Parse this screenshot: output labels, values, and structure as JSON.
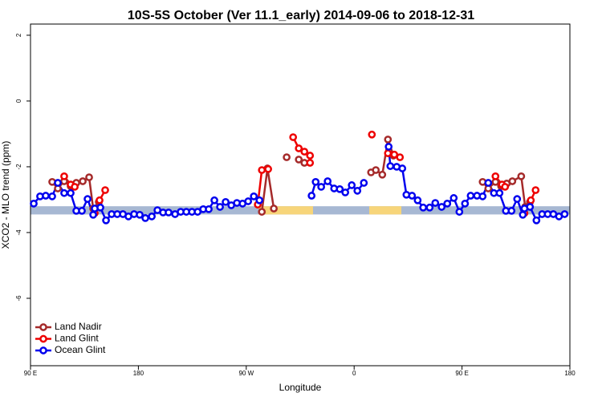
{
  "chart_data": {
    "type": "line",
    "title": "10S-5S October (Ver 11.1_early)   2014-09-06 to 2018-12-31",
    "x_label": "Longitude",
    "y_label": "XCO2 - MLO trend (ppm)",
    "xlim": [
      90,
      540
    ],
    "ylim": [
      -8.05,
      2.34
    ],
    "xticks": [
      {
        "value": 90,
        "label": "90 E"
      },
      180,
      {
        "value": 270,
        "label": "90 W"
      },
      {
        "value": 360,
        "label": "0"
      },
      {
        "value": 450,
        "label": "90 E"
      },
      {
        "value": 540,
        "label": "180"
      }
    ],
    "yticks": [
      -6,
      -4,
      -2,
      0,
      2
    ],
    "legend": "bottom-left",
    "band": {
      "ylim": [
        -3.45,
        -3.2
      ],
      "color": "#a7b8d3",
      "land_color": "#f7d57a",
      "land_spans": [
        [
          280.2,
          325.7
        ],
        [
          372.6,
          399.4
        ]
      ]
    },
    "series": [
      {
        "name": "Land Nadir",
        "color": "#a52a2a",
        "x": [
          108.1,
          112.8,
          118.1,
          123.5,
          128.2,
          133.6,
          138.9,
          142.3,
          147.0,
          null,
          283.0,
          287.7,
          293.0,
          null,
          303.7,
          null,
          313.8,
          318.5,
          null,
          374.1,
          378.1,
          383.5,
          388.2,
          392.8,
          null,
          467.2,
          471.9,
          477.9,
          482.6,
          487.3,
          492.0,
          499.4,
          502.7,
          506.7
        ],
        "values": [
          -2.46,
          -2.66,
          -2.44,
          -2.59,
          -2.49,
          -2.44,
          -2.32,
          -3.27,
          -3.07,
          null,
          -3.37,
          -2.05,
          -3.27,
          null,
          -1.71,
          null,
          -1.78,
          -1.88,
          null,
          -2.17,
          -2.1,
          -2.24,
          -1.17,
          -1.66,
          null,
          -2.46,
          -2.66,
          -2.46,
          -2.59,
          -2.51,
          -2.44,
          -2.29,
          -3.22,
          -3.07
        ]
      },
      {
        "name": "Land Glint",
        "color": "#ee0000",
        "x": [
          118.1,
          123.5,
          126.9,
          null,
          143.6,
          147.6,
          152.3,
          null,
          279.6,
          283.0,
          288.3,
          null,
          309.1,
          313.8,
          318.5,
          323.2,
          323.2,
          null,
          374.8,
          null,
          388.2,
          393.5,
          398.2,
          null,
          477.9,
          483.3,
          485.9,
          null,
          502.1,
          507.4,
          511.4
        ],
        "values": [
          -2.29,
          -2.54,
          -2.61,
          null,
          -3.41,
          -3.02,
          -2.71,
          null,
          -3.15,
          -2.1,
          -2.07,
          null,
          -1.1,
          -1.44,
          -1.54,
          -1.66,
          -1.88,
          null,
          -1.02,
          null,
          -1.59,
          -1.63,
          -1.71,
          null,
          -2.29,
          -2.54,
          -2.61,
          null,
          -3.41,
          -3.02,
          -2.71
        ]
      },
      {
        "name": "Ocean Glint",
        "color": "#0000ee",
        "x": [
          92.7,
          98.0,
          102.7,
          108.1,
          112.8,
          118.1,
          123.5,
          128.2,
          132.9,
          137.6,
          142.3,
          143.6,
          148.3,
          153.0,
          157.7,
          162.4,
          167.1,
          171.7,
          176.4,
          181.1,
          185.8,
          191.2,
          195.9,
          200.6,
          205.2,
          210.6,
          215.3,
          220.0,
          224.7,
          229.4,
          234.1,
          238.7,
          243.4,
          248.1,
          252.8,
          257.5,
          262.2,
          266.9,
          271.6,
          276.3,
          281.0,
          null,
          324.5,
          327.9,
          332.5,
          337.9,
          343.3,
          348.0,
          352.6,
          358.0,
          362.7,
          368.1,
          null,
          388.8,
          390.2,
          395.5,
          400.2,
          403.6,
          408.3,
          413.0,
          417.6,
          423.0,
          427.7,
          433.0,
          437.7,
          443.1,
          447.8,
          452.5,
          457.2,
          462.5,
          467.2,
          471.9,
          476.6,
          481.3,
          486.6,
          491.3,
          496.0,
          500.7,
          502.1,
          506.7,
          512.1,
          516.8,
          521.5,
          526.2,
          530.9,
          535.6
        ],
        "values": [
          -3.12,
          -2.9,
          -2.88,
          -2.9,
          -2.49,
          -2.8,
          -2.8,
          -3.34,
          -3.34,
          -2.98,
          -3.46,
          -3.27,
          -3.24,
          -3.63,
          -3.44,
          -3.44,
          -3.44,
          -3.51,
          -3.44,
          -3.46,
          -3.56,
          -3.51,
          -3.32,
          -3.39,
          -3.39,
          -3.44,
          -3.37,
          -3.37,
          -3.37,
          -3.37,
          -3.29,
          -3.29,
          -3.02,
          -3.22,
          -3.07,
          -3.17,
          -3.1,
          -3.12,
          -3.05,
          -2.9,
          -3.02,
          null,
          -2.88,
          -2.46,
          -2.61,
          -2.44,
          -2.66,
          -2.68,
          -2.78,
          -2.56,
          -2.73,
          -2.49,
          null,
          -1.39,
          -1.98,
          -2.0,
          -2.05,
          -2.85,
          -2.88,
          -3.02,
          -3.24,
          -3.24,
          -3.1,
          -3.22,
          -3.12,
          -2.95,
          -3.37,
          -3.12,
          -2.88,
          -2.88,
          -2.9,
          -2.49,
          -2.8,
          -2.8,
          -3.34,
          -3.34,
          -2.98,
          -3.46,
          -3.27,
          -3.22,
          -3.63,
          -3.44,
          -3.44,
          -3.44,
          -3.51,
          -3.44
        ]
      }
    ]
  }
}
